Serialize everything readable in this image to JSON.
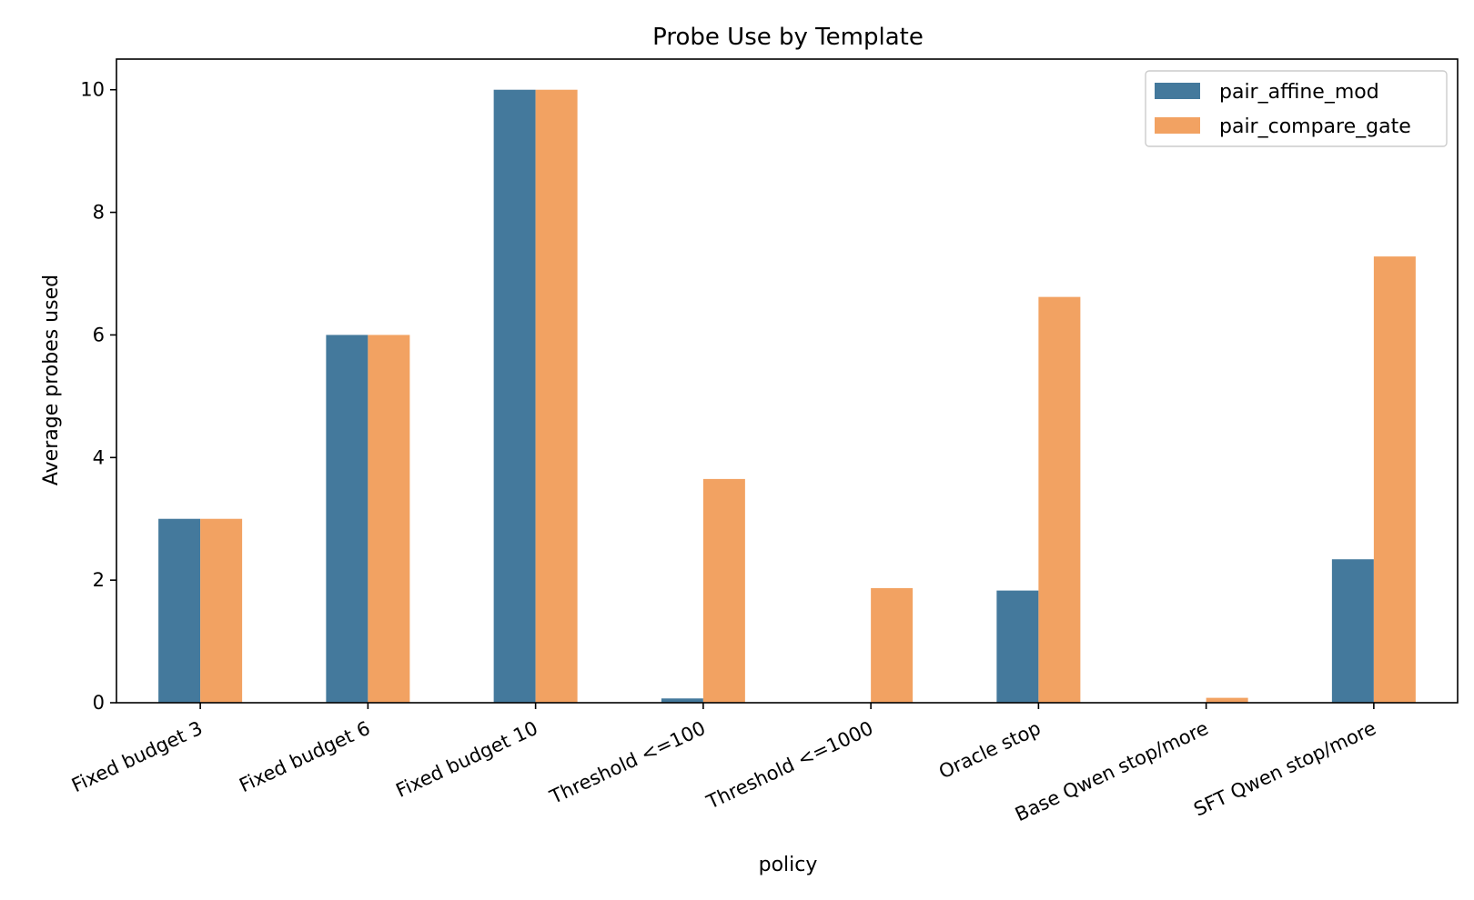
{
  "chart_data": {
    "type": "bar",
    "title": "Probe Use by Template",
    "xlabel": "policy",
    "ylabel": "Average probes used",
    "categories": [
      "Fixed budget 3",
      "Fixed budget 6",
      "Fixed budget 10",
      "Threshold <=100",
      "Threshold <=1000",
      "Oracle stop",
      "Base Qwen stop/more",
      "SFT Qwen stop/more"
    ],
    "series": [
      {
        "name": "pair_affine_mod",
        "color": "#44799c",
        "values": [
          3.0,
          6.0,
          10.0,
          0.07,
          0.0,
          1.83,
          0.0,
          2.34
        ]
      },
      {
        "name": "pair_compare_gate",
        "color": "#f2a262",
        "values": [
          3.0,
          6.0,
          10.0,
          3.65,
          1.87,
          6.62,
          0.08,
          7.28
        ]
      }
    ],
    "ylim": [
      0,
      10.5
    ],
    "yticks": [
      0,
      2,
      4,
      6,
      8,
      10
    ],
    "grid": false,
    "legend_position": "top-right"
  }
}
